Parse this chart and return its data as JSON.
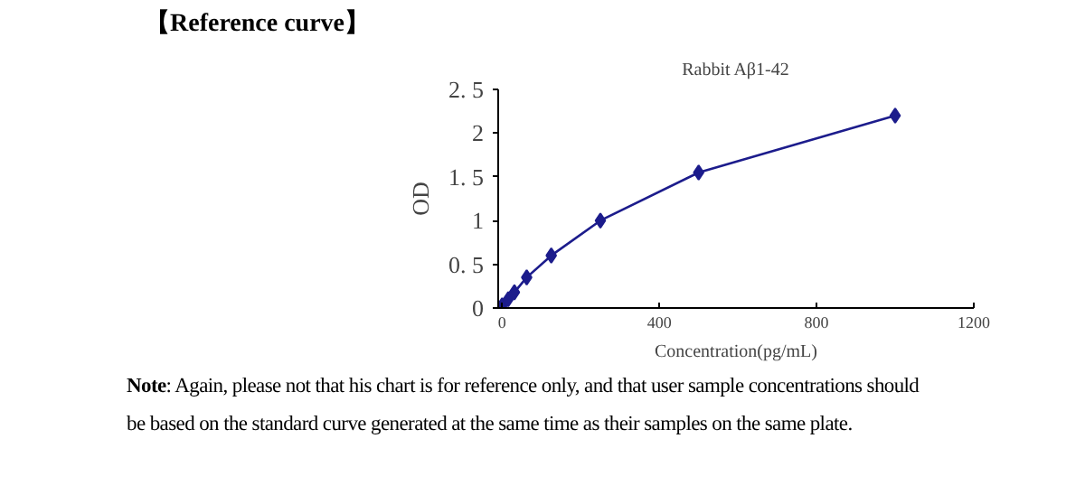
{
  "chart_data": {
    "type": "line",
    "title": "【Reference curve】",
    "subtitle": "Rabbit Aβ1-42",
    "xlabel": "Concentration(pg/mL)",
    "ylabel": "OD",
    "x": [
      0,
      15.6,
      31.25,
      62.5,
      125,
      250,
      500,
      1000
    ],
    "series": [
      {
        "color": "#1c1c8c",
        "values": [
          0.03,
          0.1,
          0.18,
          0.35,
          0.6,
          1.0,
          1.55,
          2.2
        ]
      }
    ],
    "xlim": [
      -10,
      1200
    ],
    "ylim": [
      0,
      2.5
    ],
    "xticks": [
      0,
      400,
      800,
      1200
    ],
    "yticks": [
      0,
      {
        "value": 0.5,
        "label": "0. 5"
      },
      1,
      {
        "value": 1.5,
        "label": "1. 5"
      },
      2,
      {
        "value": 2.5,
        "label": "2. 5"
      }
    ],
    "marker": "diamond",
    "line_style": "solid",
    "grid": false,
    "annotations": [
      "Note: Again, please not that his chart is for reference only, and that user sample concentrations should be based on the standard curve generated at the same time as their samples on the same plate."
    ]
  }
}
